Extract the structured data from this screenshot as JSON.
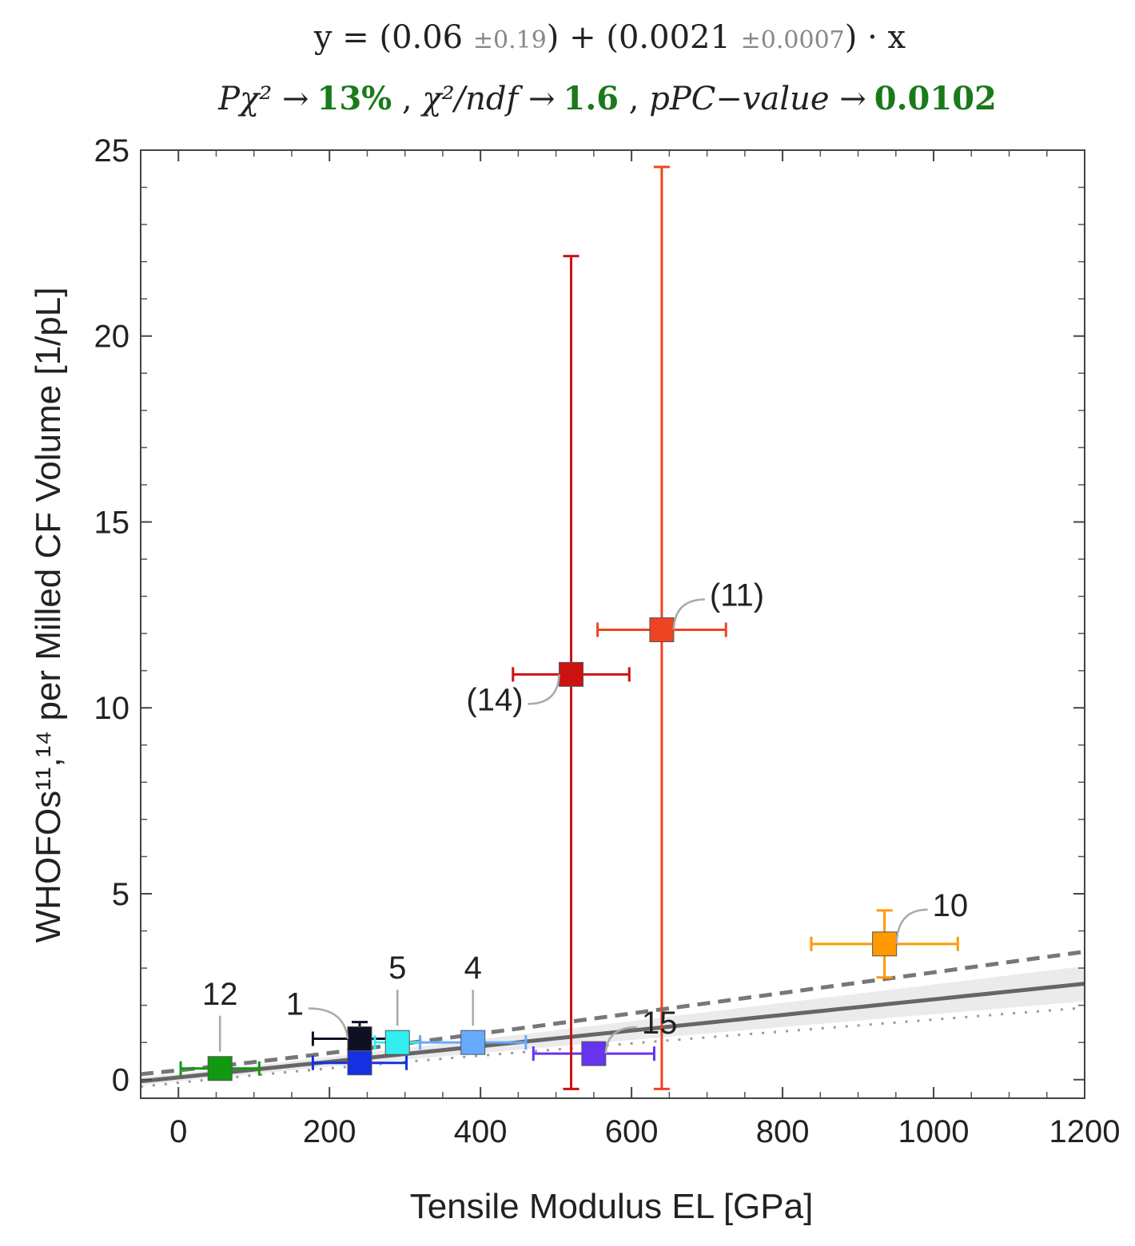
{
  "chart_data": {
    "type": "scatter",
    "formula": {
      "prefix": "y = (0.06 ",
      "intercept_err": "±0.19",
      "middle": ") + (0.0021 ",
      "slope_err": "±0.0007",
      "suffix": ") · x"
    },
    "stats": {
      "p_chi2_label": "Pχ² →",
      "p_chi2_value": "13%",
      "chi2_ndf_label": "χ²/ndf →",
      "chi2_ndf_value": "1.6",
      "ppc_label": "pPC−value →",
      "ppc_value": "0.0102"
    },
    "xlabel": "Tensile Modulus EL [GPa]",
    "ylabel": "WHOFOs¹¹,¹⁴ per Milled CF Volume [1/pL]",
    "xlim": [
      -50,
      1200
    ],
    "ylim": [
      -0.5,
      25
    ],
    "xticks": [
      0,
      200,
      400,
      600,
      800,
      1000,
      1200
    ],
    "yticks": [
      0,
      5,
      10,
      15,
      20,
      25
    ],
    "fit": {
      "intercept": 0.06,
      "slope": 0.0021,
      "intercept_err": 0.19,
      "slope_err": 0.0007
    },
    "points": [
      {
        "label": "12",
        "x": 55,
        "xerr": 52,
        "y": 0.3,
        "yerr_lo": 0.1,
        "yerr_hi": 0.1,
        "color": "#119911"
      },
      {
        "label": "1",
        "x": 240,
        "xerr": 62,
        "y": 1.1,
        "yerr_lo": 0.2,
        "yerr_hi": 0.45,
        "color": "#101025"
      },
      {
        "label": "",
        "x": 240,
        "xerr": 62,
        "y": 0.45,
        "yerr_lo": 0.1,
        "yerr_hi": 0.1,
        "color": "#1530e0"
      },
      {
        "label": "5",
        "x": 290,
        "xerr": 30,
        "y": 1.0,
        "yerr_lo": 0.1,
        "yerr_hi": 0.1,
        "color": "#33eeee"
      },
      {
        "label": "4",
        "x": 390,
        "xerr": 70,
        "y": 1.0,
        "yerr_lo": 0.1,
        "yerr_hi": 0.1,
        "color": "#66aaff"
      },
      {
        "label": "15",
        "x": 550,
        "xerr": 80,
        "y": 0.7,
        "yerr_lo": 0.1,
        "yerr_hi": 0.1,
        "color": "#6633ee"
      },
      {
        "label": "(14)",
        "x": 520,
        "xerr": 77,
        "y": 10.9,
        "yerr_lo": 11.15,
        "yerr_hi": 11.25,
        "color": "#cc1111"
      },
      {
        "label": "(11)",
        "x": 640,
        "xerr": 85,
        "y": 12.1,
        "yerr_lo": 12.35,
        "yerr_hi": 12.45,
        "color": "#ee4422"
      },
      {
        "label": "10",
        "x": 935,
        "xerr": 97,
        "y": 3.65,
        "yerr_lo": 0.9,
        "yerr_hi": 0.9,
        "color": "#ff9900"
      }
    ]
  }
}
